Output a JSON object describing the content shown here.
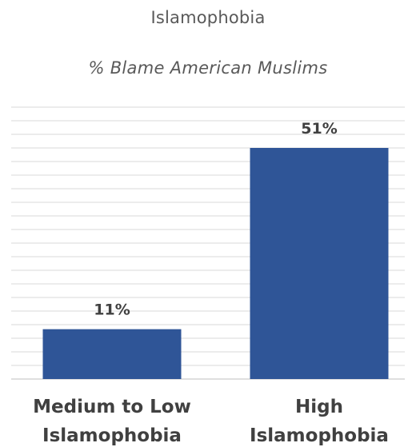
{
  "chart_data": {
    "type": "bar",
    "title": "Islamophobia",
    "subtitle": "% Blame American Muslims",
    "categories": [
      [
        "Medium to Low",
        "Islamophobia"
      ],
      [
        "High",
        "Islamophobia"
      ]
    ],
    "values": [
      11,
      51
    ],
    "value_labels": [
      "11%",
      "51%"
    ],
    "ylim": [
      0,
      60
    ],
    "grid": true,
    "bar_color": "#2F5597",
    "gridline_color": "#D9D9D9",
    "label_color": "#404040",
    "title_color": "#595959"
  }
}
